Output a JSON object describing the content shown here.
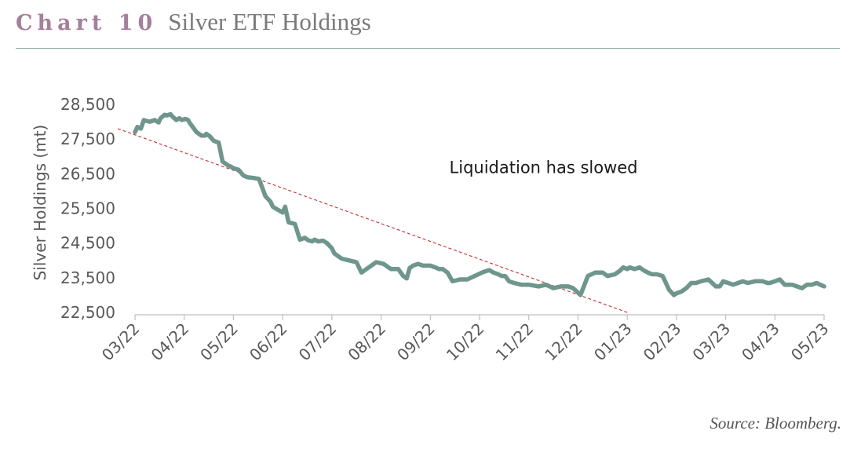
{
  "header": {
    "chart_number": "Chart 10",
    "title": "Silver ETF Holdings"
  },
  "source": "Source: Bloomberg.",
  "colors": {
    "series": "#6f968c",
    "trend": "#c0282d",
    "accent": "#a57f9c",
    "rule": "#8aa59d"
  },
  "chart_data": {
    "type": "line",
    "title": "Silver ETF Holdings",
    "xlabel": "",
    "ylabel": "Silver Holdings (mt)",
    "ylim": [
      22500,
      28500
    ],
    "yticks": [
      22500,
      23500,
      24500,
      25500,
      26500,
      27500,
      28500
    ],
    "ytick_labels": [
      "22,500",
      "23,500",
      "24,500",
      "25,500",
      "26,500",
      "27,500",
      "28,500"
    ],
    "xlim": [
      0,
      14
    ],
    "xticks": [
      0,
      1,
      2,
      3,
      4,
      5,
      6,
      7,
      8,
      9,
      10,
      11,
      12,
      13,
      14
    ],
    "xtick_labels": [
      "03/22",
      "04/22",
      "05/22",
      "06/22",
      "07/22",
      "08/22",
      "09/22",
      "10/22",
      "11/22",
      "12/22",
      "01/23",
      "02/23",
      "03/23",
      "04/23",
      "05/23"
    ],
    "annotation": {
      "text": "Liquidation has slowed",
      "x": 8.3,
      "y": 26700
    },
    "series": [
      {
        "name": "Silver ETF Holdings",
        "x": [
          0.0,
          0.05,
          0.12,
          0.18,
          0.22,
          0.3,
          0.4,
          0.48,
          0.52,
          0.6,
          0.65,
          0.72,
          0.76,
          0.84,
          0.9,
          0.95,
          1.02,
          1.08,
          1.12,
          1.25,
          1.35,
          1.42,
          1.45,
          1.52,
          1.6,
          1.7,
          1.78,
          1.88,
          1.95,
          2.02,
          2.1,
          2.2,
          2.28,
          2.4,
          2.52,
          2.65,
          2.75,
          2.8,
          2.88,
          3.0,
          3.05,
          3.12,
          3.25,
          3.35,
          3.45,
          3.52,
          3.6,
          3.65,
          3.72,
          3.82,
          3.9,
          4.0,
          4.05,
          4.2,
          4.35,
          4.5,
          4.6,
          4.75,
          4.9,
          5.05,
          5.2,
          5.35,
          5.45,
          5.52,
          5.58,
          5.65,
          5.75,
          5.85,
          6.0,
          6.1,
          6.18,
          6.25,
          6.35,
          6.45,
          6.6,
          6.75,
          6.9,
          7.05,
          7.15,
          7.2,
          7.28,
          7.38,
          7.45,
          7.52,
          7.6,
          7.7,
          7.85,
          8.0,
          8.2,
          8.35,
          8.5,
          8.65,
          8.8,
          8.9,
          9.05,
          9.2,
          9.35,
          9.5,
          9.6,
          9.75,
          9.85,
          9.92,
          10.0,
          10.05,
          10.15,
          10.25,
          10.35,
          10.42,
          10.5,
          10.6,
          10.72,
          10.85,
          10.95,
          11.0,
          11.1,
          11.2,
          11.3,
          11.4,
          11.5,
          11.65,
          11.8,
          11.88,
          11.95,
          12.05,
          12.15,
          12.25,
          12.35,
          12.45,
          12.6,
          12.75,
          12.85,
          12.9,
          13.0,
          13.1,
          13.2,
          13.35,
          13.45,
          13.55,
          13.65,
          13.75,
          13.85,
          13.92,
          14.0
        ],
        "y": [
          27700,
          27850,
          27800,
          28050,
          28030,
          28000,
          28050,
          27980,
          28100,
          28200,
          28180,
          28220,
          28150,
          28050,
          28100,
          28050,
          28080,
          28050,
          27950,
          27700,
          27600,
          27600,
          27650,
          27580,
          27450,
          27400,
          26850,
          26750,
          26700,
          26650,
          26620,
          26450,
          26400,
          26380,
          26350,
          25850,
          25700,
          25550,
          25480,
          25380,
          25550,
          25100,
          25050,
          24600,
          24650,
          24580,
          24550,
          24600,
          24550,
          24570,
          24500,
          24350,
          24200,
          24050,
          24000,
          23950,
          23650,
          23800,
          23950,
          23900,
          23750,
          23750,
          23550,
          23480,
          23780,
          23850,
          23900,
          23850,
          23850,
          23800,
          23750,
          23750,
          23650,
          23400,
          23450,
          23450,
          23550,
          23650,
          23700,
          23720,
          23650,
          23600,
          23550,
          23550,
          23400,
          23350,
          23300,
          23300,
          23250,
          23300,
          23200,
          23250,
          23250,
          23200,
          23000,
          23550,
          23650,
          23650,
          23550,
          23600,
          23700,
          23800,
          23750,
          23800,
          23750,
          23800,
          23700,
          23650,
          23600,
          23600,
          23550,
          23150,
          23000,
          23050,
          23100,
          23200,
          23350,
          23350,
          23400,
          23450,
          23250,
          23250,
          23400,
          23350,
          23300,
          23350,
          23400,
          23350,
          23400,
          23400,
          23350,
          23350,
          23400,
          23450,
          23300,
          23300,
          23250,
          23200,
          23300,
          23300,
          23350,
          23300,
          23250
        ],
        "color": "#6f968c"
      },
      {
        "name": "Trend",
        "style": "dashed",
        "x": [
          -0.35,
          10.0
        ],
        "y": [
          27800,
          22500
        ],
        "color": "#c0282d"
      }
    ]
  }
}
